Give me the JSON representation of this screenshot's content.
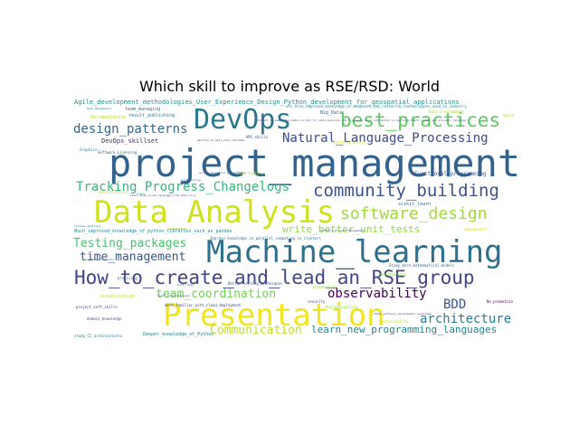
{
  "title": "Which skill to improve as RSE/RSD: World",
  "words": [
    {
      "text": "project_management",
      "color": "#33638d"
    },
    {
      "text": "Machine_learning",
      "color": "#2c728e"
    },
    {
      "text": "Data_Analysis",
      "color": "#d0e11c"
    },
    {
      "text": "Presentation",
      "color": "#f1e51d"
    },
    {
      "text": "DevOps",
      "color": "#2a788e"
    },
    {
      "text": "How_to_create_and_lead_an_RSE_group",
      "color": "#414487"
    },
    {
      "text": "best_practices",
      "color": "#5ec962"
    },
    {
      "text": "community_building",
      "color": "#3b528b"
    },
    {
      "text": "software_design",
      "color": "#a0da39"
    },
    {
      "text": "Natural_Language_Processing",
      "color": "#3e4a89"
    },
    {
      "text": "Tracking_Progress_Changelogs",
      "color": "#35b779"
    },
    {
      "text": "design_patterns",
      "color": "#31688e"
    },
    {
      "text": "time_management",
      "color": "#39558c"
    },
    {
      "text": "Testing_packages",
      "color": "#4ac16d"
    },
    {
      "text": "observability",
      "color": "#440154"
    },
    {
      "text": "team_coordination",
      "color": "#73d056"
    },
    {
      "text": "architecture",
      "color": "#287d8e"
    },
    {
      "text": "Communication",
      "color": "#bddf26"
    },
    {
      "text": "learn_new_programming_languages",
      "color": "#26828e"
    },
    {
      "text": "write_better_unit_tests",
      "color": "#90d743"
    },
    {
      "text": "BDD",
      "color": "#3b528b"
    },
    {
      "text": "Agile_development_methodologies_User_Experience_Design_Python_development_for_geospatial_applications",
      "color": "#21918c"
    },
    {
      "text": "Much_improved_knowledge_of_python_libraries_such_as_pandas",
      "color": "#23888e"
    },
    {
      "text": "DevOps_skillset",
      "color": "#482878"
    },
    {
      "text": "Functional_programming",
      "color": "#3b528b"
    },
    {
      "text": "result_publishing",
      "color": "#2c728e"
    },
    {
      "text": "Big_Data",
      "color": "#355f8d"
    },
    {
      "text": "team_managing",
      "color": "#2a788e"
    },
    {
      "text": "scikit_learn",
      "color": "#2c728e"
    },
    {
      "text": "Improve_knowledge_in_parallel_computing_in_clusters",
      "color": "#31688e"
    },
    {
      "text": "etc_Also_improved_knowledge_of_webbased_and_rasterlib_technologies_used_in_industry",
      "color": "#287d8e"
    },
    {
      "text": "Study_more_mathematical_models",
      "color": "#355f8d"
    },
    {
      "text": "Deeper_knowledge_of_Python",
      "color": "#26828e"
    },
    {
      "text": "Data_Management",
      "color": "#2a788e"
    },
    {
      "text": "Be_promotion",
      "color": "#440154"
    },
    {
      "text": "visualisation",
      "color": "#b5de2b"
    },
    {
      "text": "management",
      "color": "#cae11f"
    },
    {
      "text": "Data_software_development_knowledge",
      "color": "#3e4a89"
    },
    {
      "text": "Software_Project_Management",
      "color": "#39558c"
    },
    {
      "text": "Better_testing_techniques",
      "color": "#3b528b"
    },
    {
      "text": "more_familiar_with_cloud_deployment",
      "color": "#414487"
    },
    {
      "text": "teaching_skills",
      "color": "#c8e020"
    },
    {
      "text": "Data_programming",
      "color": "#a5db36"
    },
    {
      "text": "documentation",
      "color": "#addc30"
    },
    {
      "text": "specialisation",
      "color": "#b8de29"
    },
    {
      "text": "accessibility",
      "color": "#c0df25"
    },
    {
      "text": "User_testing",
      "color": "#9bd93c"
    },
    {
      "text": "Systems_Auditing",
      "color": "#2a788e"
    },
    {
      "text": "Knowledge_Transfer",
      "color": "#2c728e"
    },
    {
      "text": "Software_Licensing",
      "color": "#355f8d"
    },
    {
      "text": "Contributing",
      "color": "#31688e"
    },
    {
      "text": "study_CI_architectures",
      "color": "#2c728e"
    },
    {
      "text": "project_soft_skills",
      "color": "#433e85"
    },
    {
      "text": "domain_knowledge",
      "color": "#3b528b"
    },
    {
      "text": "security",
      "color": "#404688"
    },
    {
      "text": "Reproducibility",
      "color": "#95d840"
    },
    {
      "text": "Documenting",
      "color": "#a2da37"
    },
    {
      "text": "Benchmarking",
      "color": "#8fd744"
    },
    {
      "text": "profiling",
      "color": "#34618d"
    },
    {
      "text": "Graphics",
      "color": "#2b748e"
    },
    {
      "text": "HPC_skills",
      "color": "#3f4788"
    },
    {
      "text": "giving_talks_and_presentation",
      "color": "#38588c"
    },
    {
      "text": "ability_to_sell_work_outcomes",
      "color": "#472f7d"
    },
    {
      "text": "Thought_is_mastering_model_script_for_data_analysis_and_t_am_very_more_interested_in_learning_black_system_and_economic_language",
      "color": "#3b528b"
    },
    {
      "text": "learn_more_languages",
      "color": "#31688e"
    },
    {
      "text": "Learn_Rust_a_new_language_like_Rust_in_a",
      "color": "#453781"
    },
    {
      "text": "more_ideas",
      "color": "#2e6e8e"
    },
    {
      "text": "Agile",
      "color": "#9fda3a"
    }
  ]
}
